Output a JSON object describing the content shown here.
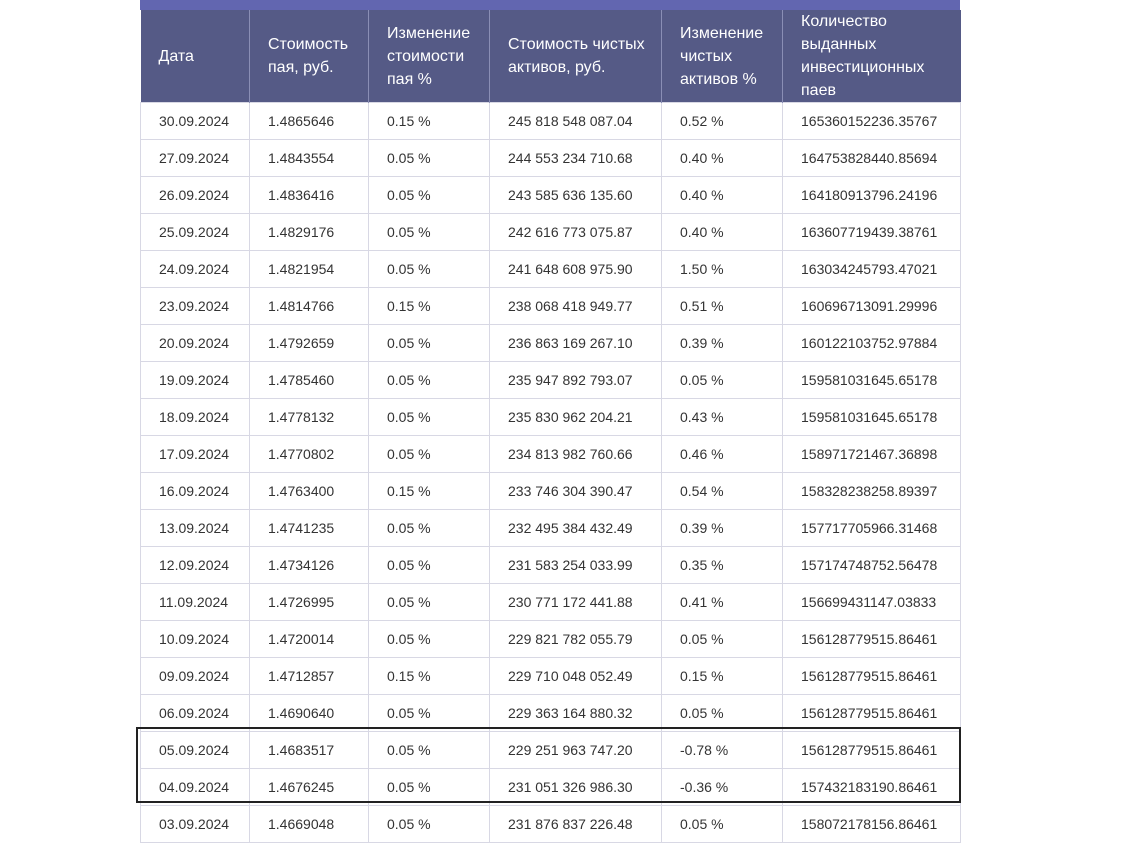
{
  "table": {
    "headers": [
      "Дата",
      "Стоимость пая, руб.",
      "Изменение стоимости пая %",
      "Стоимость чистых активов, руб.",
      "Изменение чистых активов %",
      "Количество выданных инвестиционных паев"
    ],
    "rows": [
      [
        "30.09.2024",
        "1.4865646",
        "0.15 %",
        "245 818 548 087.04",
        "0.52 %",
        "165360152236.35767"
      ],
      [
        "27.09.2024",
        "1.4843554",
        "0.05 %",
        "244 553 234 710.68",
        "0.40 %",
        "164753828440.85694"
      ],
      [
        "26.09.2024",
        "1.4836416",
        "0.05 %",
        "243 585 636 135.60",
        "0.40 %",
        "164180913796.24196"
      ],
      [
        "25.09.2024",
        "1.4829176",
        "0.05 %",
        "242 616 773 075.87",
        "0.40 %",
        "163607719439.38761"
      ],
      [
        "24.09.2024",
        "1.4821954",
        "0.05 %",
        "241 648 608 975.90",
        "1.50 %",
        "163034245793.47021"
      ],
      [
        "23.09.2024",
        "1.4814766",
        "0.15 %",
        "238 068 418 949.77",
        "0.51 %",
        "160696713091.29996"
      ],
      [
        "20.09.2024",
        "1.4792659",
        "0.05 %",
        "236 863 169 267.10",
        "0.39 %",
        "160122103752.97884"
      ],
      [
        "19.09.2024",
        "1.4785460",
        "0.05 %",
        "235 947 892 793.07",
        "0.05 %",
        "159581031645.65178"
      ],
      [
        "18.09.2024",
        "1.4778132",
        "0.05 %",
        "235 830 962 204.21",
        "0.43 %",
        "159581031645.65178"
      ],
      [
        "17.09.2024",
        "1.4770802",
        "0.05 %",
        "234 813 982 760.66",
        "0.46 %",
        "158971721467.36898"
      ],
      [
        "16.09.2024",
        "1.4763400",
        "0.15 %",
        "233 746 304 390.47",
        "0.54 %",
        "158328238258.89397"
      ],
      [
        "13.09.2024",
        "1.4741235",
        "0.05 %",
        "232 495 384 432.49",
        "0.39 %",
        "157717705966.31468"
      ],
      [
        "12.09.2024",
        "1.4734126",
        "0.05 %",
        "231 583 254 033.99",
        "0.35 %",
        "157174748752.56478"
      ],
      [
        "11.09.2024",
        "1.4726995",
        "0.05 %",
        "230 771 172 441.88",
        "0.41 %",
        "156699431147.03833"
      ],
      [
        "10.09.2024",
        "1.4720014",
        "0.05 %",
        "229 821 782 055.79",
        "0.05 %",
        "156128779515.86461"
      ],
      [
        "09.09.2024",
        "1.4712857",
        "0.15 %",
        "229 710 048 052.49",
        "0.15 %",
        "156128779515.86461"
      ],
      [
        "06.09.2024",
        "1.4690640",
        "0.05 %",
        "229 363 164 880.32",
        "0.05 %",
        "156128779515.86461"
      ],
      [
        "05.09.2024",
        "1.4683517",
        "0.05 %",
        "229 251 963 747.20",
        "-0.78 %",
        "156128779515.86461"
      ],
      [
        "04.09.2024",
        "1.4676245",
        "0.05 %",
        "231 051 326 986.30",
        "-0.36 %",
        "157432183190.86461"
      ],
      [
        "03.09.2024",
        "1.4669048",
        "0.05 %",
        "231 876 837 226.48",
        "0.05 %",
        "158072178156.86461"
      ]
    ]
  },
  "colors": {
    "header_bg": "#555a86",
    "top_strip": "#6266b0",
    "cell_border": "#d8d8e4",
    "highlight_border": "#222222"
  }
}
